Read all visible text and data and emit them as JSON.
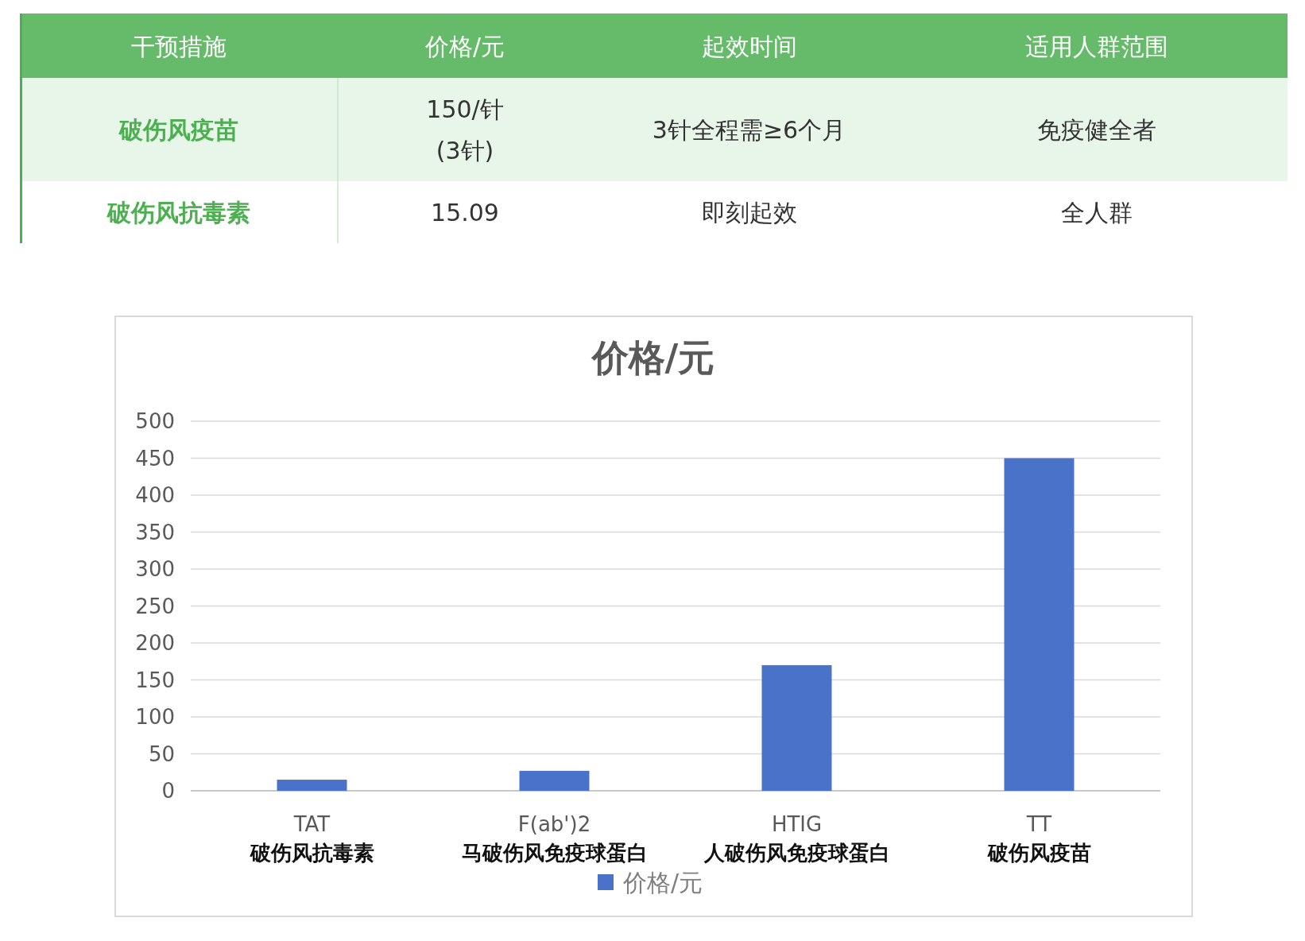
{
  "chart_data": [
    {
      "type": "other",
      "categories": [
        "干预措施",
        "价格/元",
        "起效时间",
        "适用人群范围"
      ],
      "y_categories": [
        "破伤风疫苗",
        "破伤风抗毒素"
      ],
      "cell_labels": [
        [
          "150/针\n(3针)",
          "3针全程需≥6个月",
          "免疫健全者"
        ],
        [
          "15.09",
          "即刻起效",
          "全人群"
        ]
      ]
    },
    {
      "type": "bar",
      "title": "价格/元",
      "categories": [
        "TAT\n破伤风抗毒素",
        "F(ab')2\n马破伤风免疫球蛋白",
        "HTIG\n人破伤风免疫球蛋白",
        "TT\n破伤风疫苗"
      ],
      "series": [
        {
          "name": "价格/元",
          "color": "#4a72c8",
          "values": [
            15,
            27,
            170,
            450
          ]
        }
      ],
      "ylim": [
        0,
        500
      ],
      "yticks": [
        0,
        50,
        100,
        150,
        200,
        250,
        300,
        350,
        400,
        450,
        500
      ],
      "grid": "y",
      "legend": "bottom"
    }
  ]
}
